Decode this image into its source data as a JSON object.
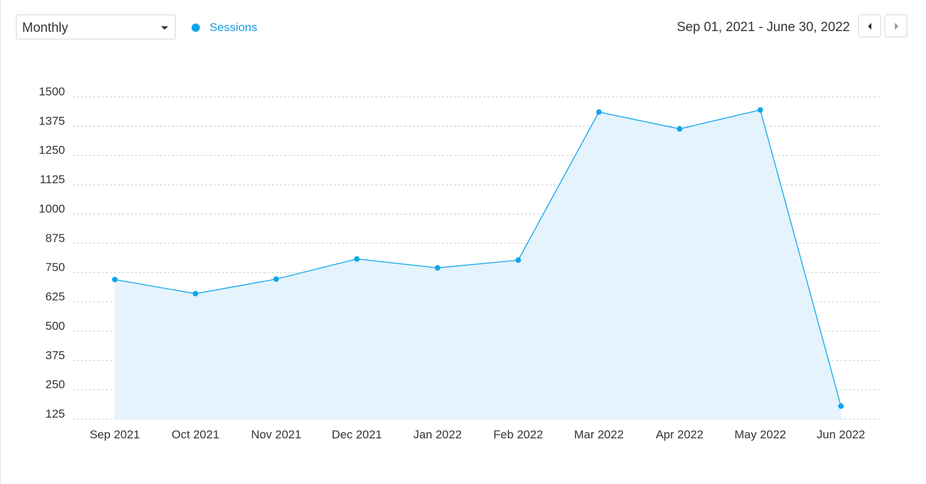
{
  "controls": {
    "period_select": {
      "value": "Monthly"
    },
    "date_range": "Sep 01, 2021 - June 30, 2022",
    "nav": {
      "prev_icon": "caret-left-icon",
      "next_icon": "caret-right-icon"
    }
  },
  "colors": {
    "series_line": "#0ea5ec",
    "series_fill": "#e4f3fc",
    "legend_text": "#1a9ee0",
    "grid": "#c8c8c8"
  },
  "chart_data": {
    "type": "area",
    "categories": [
      "Sep 2021",
      "Oct 2021",
      "Nov 2021",
      "Dec 2021",
      "Jan 2022",
      "Feb 2022",
      "Mar 2022",
      "Apr 2022",
      "May 2022",
      "Jun 2022"
    ],
    "series": [
      {
        "name": "Sessions",
        "values": [
          720,
          660,
          722,
          808,
          770,
          803,
          1435,
          1363,
          1444,
          180
        ]
      }
    ],
    "y_ticks": [
      125,
      250,
      375,
      500,
      625,
      750,
      875,
      1000,
      1125,
      1250,
      1375,
      1500
    ],
    "ylim": [
      125,
      1500
    ],
    "grid": true,
    "legend_position": "top-left"
  }
}
